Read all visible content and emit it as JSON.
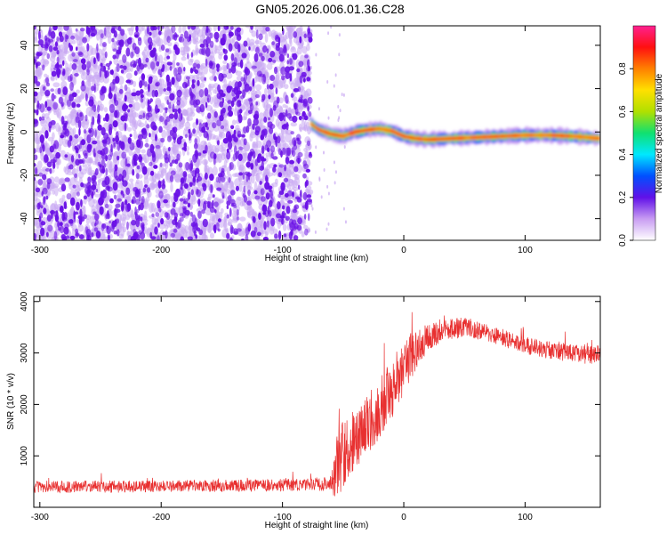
{
  "title": "GN05.2026.006.01.36.C28",
  "colors": {
    "spectrogram_noise_dark": "#6a10e6",
    "spectrogram_noise_light": "#c9a8f2",
    "snr_line": "#e83030"
  },
  "chart_data": [
    {
      "id": "spectrogram",
      "type": "heatmap",
      "title": "GN05.2026.006.01.36.C28",
      "xlabel": "Height of straight line (km)",
      "ylabel": "Frequency (Hz)",
      "xlim": [
        -305,
        162
      ],
      "ylim": [
        -50,
        49
      ],
      "x_ticks": [
        -300,
        -200,
        -100,
        0,
        100
      ],
      "y_ticks": [
        -40,
        -20,
        0,
        20,
        40
      ],
      "grid": false,
      "noise_region": {
        "x": [
          -305,
          -77
        ],
        "y": [
          -50,
          49
        ],
        "level": "low"
      },
      "signal_track": {
        "x": [
          -77,
          -70,
          -60,
          -50,
          -40,
          -30,
          -20,
          -10,
          0,
          10,
          20,
          40,
          60,
          80,
          100,
          120,
          140,
          162
        ],
        "freq": [
          4,
          1,
          -1,
          -2,
          0,
          1,
          1.5,
          0.5,
          -2,
          -3,
          -3.5,
          -3,
          -2.5,
          -2,
          -1.5,
          -1.5,
          -2,
          -3
        ],
        "peak_amplitude": 0.95
      },
      "colorbar": {
        "label": "Normalized spectral amplitude",
        "range": [
          0.0,
          1.0
        ],
        "ticks": [
          0.0,
          0.2,
          0.4,
          0.6,
          0.8
        ],
        "tick_labels": [
          "0.0",
          "0.2",
          "0.4",
          "0.6",
          "0.8"
        ],
        "colormap": [
          "#ffffff",
          "#c89cf2",
          "#6010e8",
          "#0050ff",
          "#00e8ff",
          "#10e070",
          "#b0e000",
          "#ffe000",
          "#ff8000",
          "#ff1010",
          "#ff2090"
        ]
      }
    },
    {
      "id": "snr",
      "type": "line",
      "xlabel": "Height of straight line (km)",
      "ylabel": "SNR (10 * v/v)",
      "xlim": [
        -305,
        162
      ],
      "ylim": [
        0,
        4100
      ],
      "x_ticks": [
        -300,
        -200,
        -100,
        0,
        100
      ],
      "y_ticks": [
        1000,
        2000,
        3000,
        4000
      ],
      "grid": false,
      "series": [
        {
          "color": "#e83030",
          "x": [
            -305,
            -250,
            -200,
            -150,
            -100,
            -70,
            -60,
            -55,
            -45,
            -30,
            -15,
            0,
            10,
            20,
            35,
            50,
            65,
            80,
            100,
            120,
            140,
            162
          ],
          "values": [
            400,
            400,
            410,
            420,
            430,
            440,
            470,
            800,
            1200,
            1600,
            2100,
            2700,
            3100,
            3300,
            3450,
            3500,
            3420,
            3300,
            3150,
            3050,
            3000,
            2950
          ],
          "noise_amplitude": [
            120,
            120,
            120,
            120,
            120,
            130,
            150,
            700,
            600,
            600,
            600,
            550,
            450,
            250,
            200,
            200,
            180,
            170,
            170,
            170,
            180,
            200
          ]
        }
      ]
    }
  ]
}
